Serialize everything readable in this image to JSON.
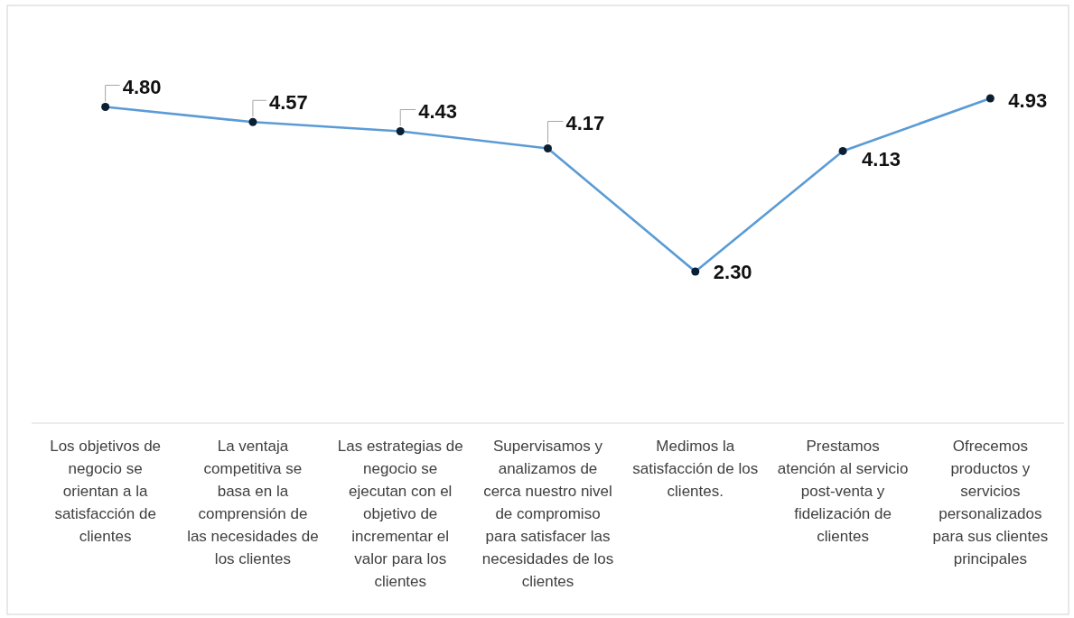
{
  "chart_data": {
    "type": "line",
    "categories": [
      "Los objetivos de negocio se orientan a la satisfacción de clientes",
      "La ventaja competitiva se basa en la comprensión de las necesidades de los clientes",
      "Las estrategias de negocio se ejecutan con el objetivo de incrementar el valor para los clientes",
      "Supervisamos y analizamos de cerca nuestro nivel de compromiso para satisfacer las necesidades de los clientes",
      "Medimos la satisfacción de los clientes.",
      "Prestamos atención al servicio post-venta y fidelización de clientes",
      "Ofrecemos productos y servicios personalizados para sus clientes principales"
    ],
    "series": [
      {
        "color": "#5b9bd5",
        "values": [
          4.8,
          4.57,
          4.43,
          4.17,
          2.3,
          4.13,
          4.93
        ],
        "value_labels": [
          "4.80",
          "4.57",
          "4.43",
          "4.17",
          "2.30",
          "4.13",
          "4.93"
        ]
      }
    ],
    "marker": "circle",
    "line_style": "solid"
  }
}
